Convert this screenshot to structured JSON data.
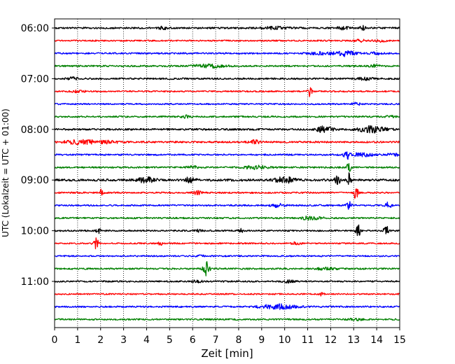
{
  "chart_data": {
    "type": "line",
    "subtype": "helicorder",
    "xlabel": "Zeit  [min]",
    "ylabel": "UTC (Lokalzeit = UTC + 01:00)",
    "xlim": [
      0,
      15
    ],
    "x_ticks": [
      0,
      1,
      2,
      3,
      4,
      5,
      6,
      7,
      8,
      9,
      10,
      11,
      12,
      13,
      14,
      15
    ],
    "y_tick_labels": [
      "06:00",
      "07:00",
      "08:00",
      "09:00",
      "10:00",
      "11:00"
    ],
    "y_tick_rows": [
      0,
      4,
      8,
      12,
      16,
      20
    ],
    "vertical_grid": "dotted",
    "series_colors": [
      "#000000",
      "#ff0000",
      "#0000ff",
      "#008000"
    ],
    "row_minutes": 15,
    "start_time": "06:00",
    "rows": [
      {
        "time": "06:00",
        "color": "#000000",
        "amp": 2.2,
        "events": [
          {
            "t": 4.7,
            "a": 3,
            "d": 0.2
          },
          {
            "t": 9.6,
            "a": 3,
            "d": 0.6
          },
          {
            "t": 12.5,
            "a": 3,
            "d": 0.3
          },
          {
            "t": 13.4,
            "a": 6,
            "d": 0.12
          }
        ]
      },
      {
        "time": "06:15",
        "color": "#ff0000",
        "amp": 1.8,
        "events": [
          {
            "t": 13.3,
            "a": 4,
            "d": 0.2
          },
          {
            "t": 14.2,
            "a": 2.5,
            "d": 0.3
          }
        ]
      },
      {
        "time": "06:30",
        "color": "#0000ff",
        "amp": 2.0,
        "events": [
          {
            "t": 11.5,
            "a": 3,
            "d": 0.5
          },
          {
            "t": 12.6,
            "a": 7,
            "d": 0.5
          },
          {
            "t": 14,
            "a": 2.5,
            "d": 0.3
          }
        ]
      },
      {
        "time": "06:45",
        "color": "#008000",
        "amp": 2.0,
        "events": [
          {
            "t": 6.7,
            "a": 4,
            "d": 0.7
          },
          {
            "t": 13.9,
            "a": 3,
            "d": 0.2
          }
        ]
      },
      {
        "time": "07:00",
        "color": "#000000",
        "amp": 2.2,
        "events": [
          {
            "t": 0.8,
            "a": 3,
            "d": 0.2
          },
          {
            "t": 13.5,
            "a": 3,
            "d": 0.3
          }
        ]
      },
      {
        "time": "07:15",
        "color": "#ff0000",
        "amp": 1.8,
        "events": [
          {
            "t": 1.0,
            "a": 2.5,
            "d": 0.3
          },
          {
            "t": 11.1,
            "a": 14,
            "d": 0.08
          }
        ]
      },
      {
        "time": "07:30",
        "color": "#0000ff",
        "amp": 1.8,
        "events": [
          {
            "t": 13.1,
            "a": 3,
            "d": 0.2
          }
        ]
      },
      {
        "time": "07:45",
        "color": "#008000",
        "amp": 2.0,
        "events": [
          {
            "t": 5.7,
            "a": 3,
            "d": 0.2
          },
          {
            "t": 14.6,
            "a": 2.5,
            "d": 0.2
          }
        ]
      },
      {
        "time": "08:00",
        "color": "#000000",
        "amp": 2.3,
        "events": [
          {
            "t": 11.6,
            "a": 8,
            "d": 0.2
          },
          {
            "t": 12.0,
            "a": 4,
            "d": 0.2
          },
          {
            "t": 13.8,
            "a": 8,
            "d": 0.6
          }
        ]
      },
      {
        "time": "08:15",
        "color": "#ff0000",
        "amp": 2.3,
        "events": [
          {
            "t": 1.2,
            "a": 5,
            "d": 0.8
          },
          {
            "t": 2.3,
            "a": 3,
            "d": 0.5
          },
          {
            "t": 8.7,
            "a": 5,
            "d": 0.2
          }
        ]
      },
      {
        "time": "08:30",
        "color": "#0000ff",
        "amp": 2.0,
        "events": [
          {
            "t": 12.7,
            "a": 16,
            "d": 0.1
          },
          {
            "t": 13.3,
            "a": 4,
            "d": 0.6
          },
          {
            "t": 14.7,
            "a": 3,
            "d": 0.3
          }
        ]
      },
      {
        "time": "08:45",
        "color": "#008000",
        "amp": 2.0,
        "events": [
          {
            "t": 6.0,
            "a": 3,
            "d": 0.3
          },
          {
            "t": 8.8,
            "a": 4,
            "d": 0.6
          },
          {
            "t": 12.8,
            "a": 16,
            "d": 0.08
          }
        ]
      },
      {
        "time": "09:00",
        "color": "#000000",
        "amp": 2.8,
        "events": [
          {
            "t": 4.0,
            "a": 6,
            "d": 0.4
          },
          {
            "t": 5.9,
            "a": 8,
            "d": 0.2
          },
          {
            "t": 10,
            "a": 8,
            "d": 0.4
          },
          {
            "t": 12.3,
            "a": 10,
            "d": 0.12
          },
          {
            "t": 12.8,
            "a": 18,
            "d": 0.08
          }
        ]
      },
      {
        "time": "09:15",
        "color": "#ff0000",
        "amp": 2.0,
        "events": [
          {
            "t": 2.0,
            "a": 8,
            "d": 0.1
          },
          {
            "t": 6.2,
            "a": 4,
            "d": 0.2
          },
          {
            "t": 13.1,
            "a": 16,
            "d": 0.1
          }
        ]
      },
      {
        "time": "09:30",
        "color": "#0000ff",
        "amp": 2.0,
        "events": [
          {
            "t": 9.7,
            "a": 4,
            "d": 0.3
          },
          {
            "t": 12.8,
            "a": 10,
            "d": 0.1
          },
          {
            "t": 14.5,
            "a": 10,
            "d": 0.12
          }
        ]
      },
      {
        "time": "09:45",
        "color": "#008000",
        "amp": 2.0,
        "events": [
          {
            "t": 11.0,
            "a": 6,
            "d": 0.2
          },
          {
            "t": 11.4,
            "a": 3,
            "d": 0.3
          }
        ]
      },
      {
        "time": "10:00",
        "color": "#000000",
        "amp": 2.0,
        "events": [
          {
            "t": 1.9,
            "a": 6,
            "d": 0.1
          },
          {
            "t": 6.2,
            "a": 3,
            "d": 0.2
          },
          {
            "t": 8.1,
            "a": 4,
            "d": 0.1
          },
          {
            "t": 13.2,
            "a": 16,
            "d": 0.1
          },
          {
            "t": 14.4,
            "a": 20,
            "d": 0.08
          }
        ]
      },
      {
        "time": "10:15",
        "color": "#ff0000",
        "amp": 1.8,
        "events": [
          {
            "t": 1.8,
            "a": 14,
            "d": 0.12
          },
          {
            "t": 4.6,
            "a": 5,
            "d": 0.08
          },
          {
            "t": 10.5,
            "a": 3,
            "d": 0.2
          }
        ]
      },
      {
        "time": "10:30",
        "color": "#0000ff",
        "amp": 1.8,
        "events": [
          {
            "t": 6.4,
            "a": 3,
            "d": 0.2
          }
        ]
      },
      {
        "time": "10:45",
        "color": "#008000",
        "amp": 2.0,
        "events": [
          {
            "t": 6.6,
            "a": 18,
            "d": 0.15
          },
          {
            "t": 11.8,
            "a": 3,
            "d": 0.4
          }
        ]
      },
      {
        "time": "11:00",
        "color": "#000000",
        "amp": 2.0,
        "events": [
          {
            "t": 6.2,
            "a": 3,
            "d": 0.2
          },
          {
            "t": 10.2,
            "a": 3,
            "d": 0.3
          }
        ]
      },
      {
        "time": "11:15",
        "color": "#ff0000",
        "amp": 1.8,
        "events": [
          {
            "t": 11.6,
            "a": 4,
            "d": 0.1
          }
        ]
      },
      {
        "time": "11:30",
        "color": "#0000ff",
        "amp": 2.0,
        "events": [
          {
            "t": 9.7,
            "a": 6,
            "d": 0.8
          }
        ]
      },
      {
        "time": "11:45",
        "color": "#008000",
        "amp": 2.0,
        "events": [
          {
            "t": 13.1,
            "a": 2.5,
            "d": 0.3
          }
        ]
      }
    ]
  }
}
